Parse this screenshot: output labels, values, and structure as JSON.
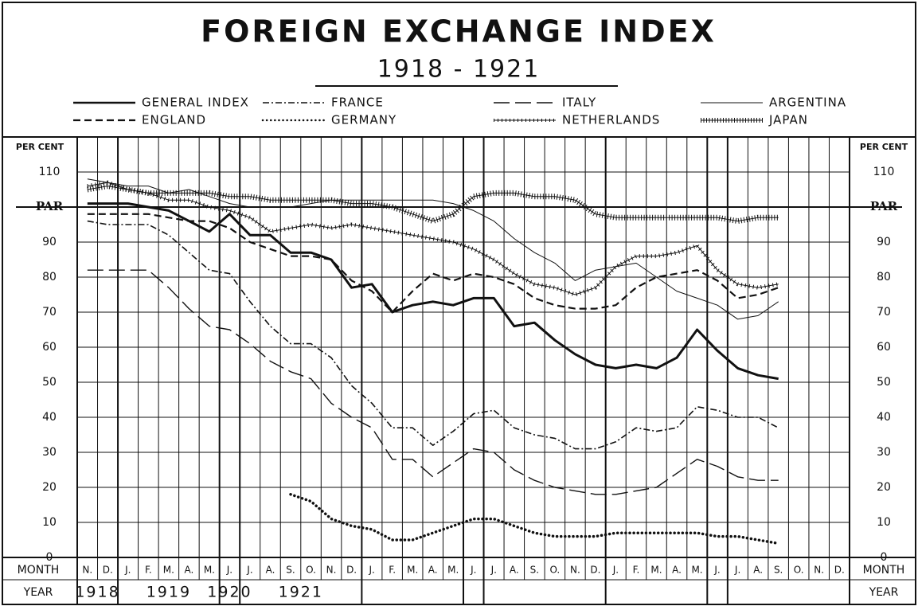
{
  "chart_data": {
    "type": "line",
    "title": "FOREIGN EXCHANGE INDEX",
    "subtitle": "1918 - 1921",
    "y_label": "PER CENT",
    "x_label_month": "MONTH",
    "x_label_year": "YEAR",
    "categories": [
      "N.",
      "D.",
      "J.",
      "F.",
      "M.",
      "A.",
      "M.",
      "J.",
      "J.",
      "A.",
      "S.",
      "O.",
      "N.",
      "D.",
      "J.",
      "F.",
      "M.",
      "A.",
      "M.",
      "J.",
      "J.",
      "A.",
      "S.",
      "O.",
      "N.",
      "D.",
      "J.",
      "F.",
      "M.",
      "A.",
      "M.",
      "J.",
      "J.",
      "A.",
      "S.",
      "O.",
      "N.",
      "D."
    ],
    "years": [
      "1918",
      "1919",
      "1920",
      "1921"
    ],
    "ylim": [
      0,
      120
    ],
    "yticks": [
      0,
      10,
      20,
      30,
      40,
      50,
      60,
      70,
      80,
      90,
      {
        "value": 100,
        "label": "PAR"
      },
      110
    ],
    "grid": true,
    "series": [
      {
        "name": "GENERAL INDEX",
        "color": "#111",
        "style": "solid-thick",
        "values": [
          101,
          101,
          101,
          100,
          99,
          96,
          93,
          98,
          92,
          92,
          87,
          87,
          85,
          77,
          78,
          70,
          72,
          73,
          72,
          74,
          74,
          66,
          67,
          62,
          58,
          55,
          54,
          55,
          54,
          57,
          65,
          59,
          54,
          52,
          51,
          null,
          null,
          null
        ]
      },
      {
        "name": "FRANCE",
        "color": "#111",
        "style": "dash-dot",
        "values": [
          96,
          95,
          95,
          95,
          92,
          87,
          82,
          81,
          73,
          66,
          61,
          61,
          57,
          49,
          44,
          37,
          37,
          32,
          36,
          41,
          42,
          37,
          35,
          34,
          31,
          31,
          33,
          37,
          36,
          37,
          43,
          42,
          40,
          40,
          37,
          null,
          null,
          null
        ]
      },
      {
        "name": "ITALY",
        "color": "#111",
        "style": "long-dash",
        "values": [
          82,
          82,
          82,
          82,
          77,
          71,
          66,
          65,
          61,
          56,
          53,
          51,
          44,
          40,
          37,
          28,
          28,
          23,
          27,
          31,
          30,
          25,
          22,
          20,
          19,
          18,
          18,
          19,
          20,
          24,
          28,
          26,
          23,
          22,
          22,
          null,
          null,
          null
        ]
      },
      {
        "name": "ARGENTINA",
        "color": "#111",
        "style": "solid-thin",
        "values": [
          108,
          107,
          106,
          106,
          104,
          105,
          103,
          101,
          100,
          100,
          100,
          101,
          102,
          102,
          102,
          102,
          102,
          102,
          101,
          99,
          96,
          91,
          87,
          84,
          79,
          82,
          83,
          84,
          80,
          76,
          74,
          72,
          68,
          69,
          73,
          null,
          null,
          null
        ]
      },
      {
        "name": "ENGLAND",
        "color": "#111",
        "style": "dash",
        "values": [
          98,
          98,
          98,
          98,
          97,
          96,
          96,
          94,
          90,
          88,
          86,
          86,
          85,
          79,
          76,
          70,
          76,
          81,
          79,
          81,
          80,
          78,
          74,
          72,
          71,
          71,
          72,
          77,
          80,
          81,
          82,
          79,
          74,
          75,
          77,
          null,
          null,
          null
        ]
      },
      {
        "name": "GERMANY",
        "color": "#111",
        "style": "dotted",
        "values": [
          null,
          null,
          null,
          null,
          null,
          null,
          null,
          null,
          null,
          null,
          18,
          16,
          11,
          9,
          8,
          5,
          5,
          7,
          9,
          11,
          11,
          9,
          7,
          6,
          6,
          6,
          7,
          7,
          7,
          7,
          7,
          6,
          6,
          5,
          4,
          null,
          null,
          null
        ]
      },
      {
        "name": "NETHERLANDS",
        "color": "#111",
        "style": "plus",
        "values": [
          106,
          107,
          105,
          104,
          102,
          102,
          100,
          99,
          97,
          93,
          94,
          95,
          94,
          95,
          94,
          93,
          92,
          91,
          90,
          88,
          85,
          81,
          78,
          77,
          75,
          77,
          83,
          86,
          86,
          87,
          89,
          82,
          78,
          77,
          78,
          null,
          null,
          null
        ]
      },
      {
        "name": "JAPAN",
        "color": "#111",
        "style": "hatch",
        "values": [
          105,
          106,
          105,
          104,
          104,
          104,
          104,
          103,
          103,
          102,
          102,
          102,
          102,
          101,
          101,
          100,
          98,
          96,
          98,
          103,
          104,
          104,
          103,
          103,
          102,
          98,
          97,
          97,
          97,
          97,
          97,
          97,
          96,
          97,
          97,
          null,
          null,
          null
        ]
      }
    ]
  }
}
